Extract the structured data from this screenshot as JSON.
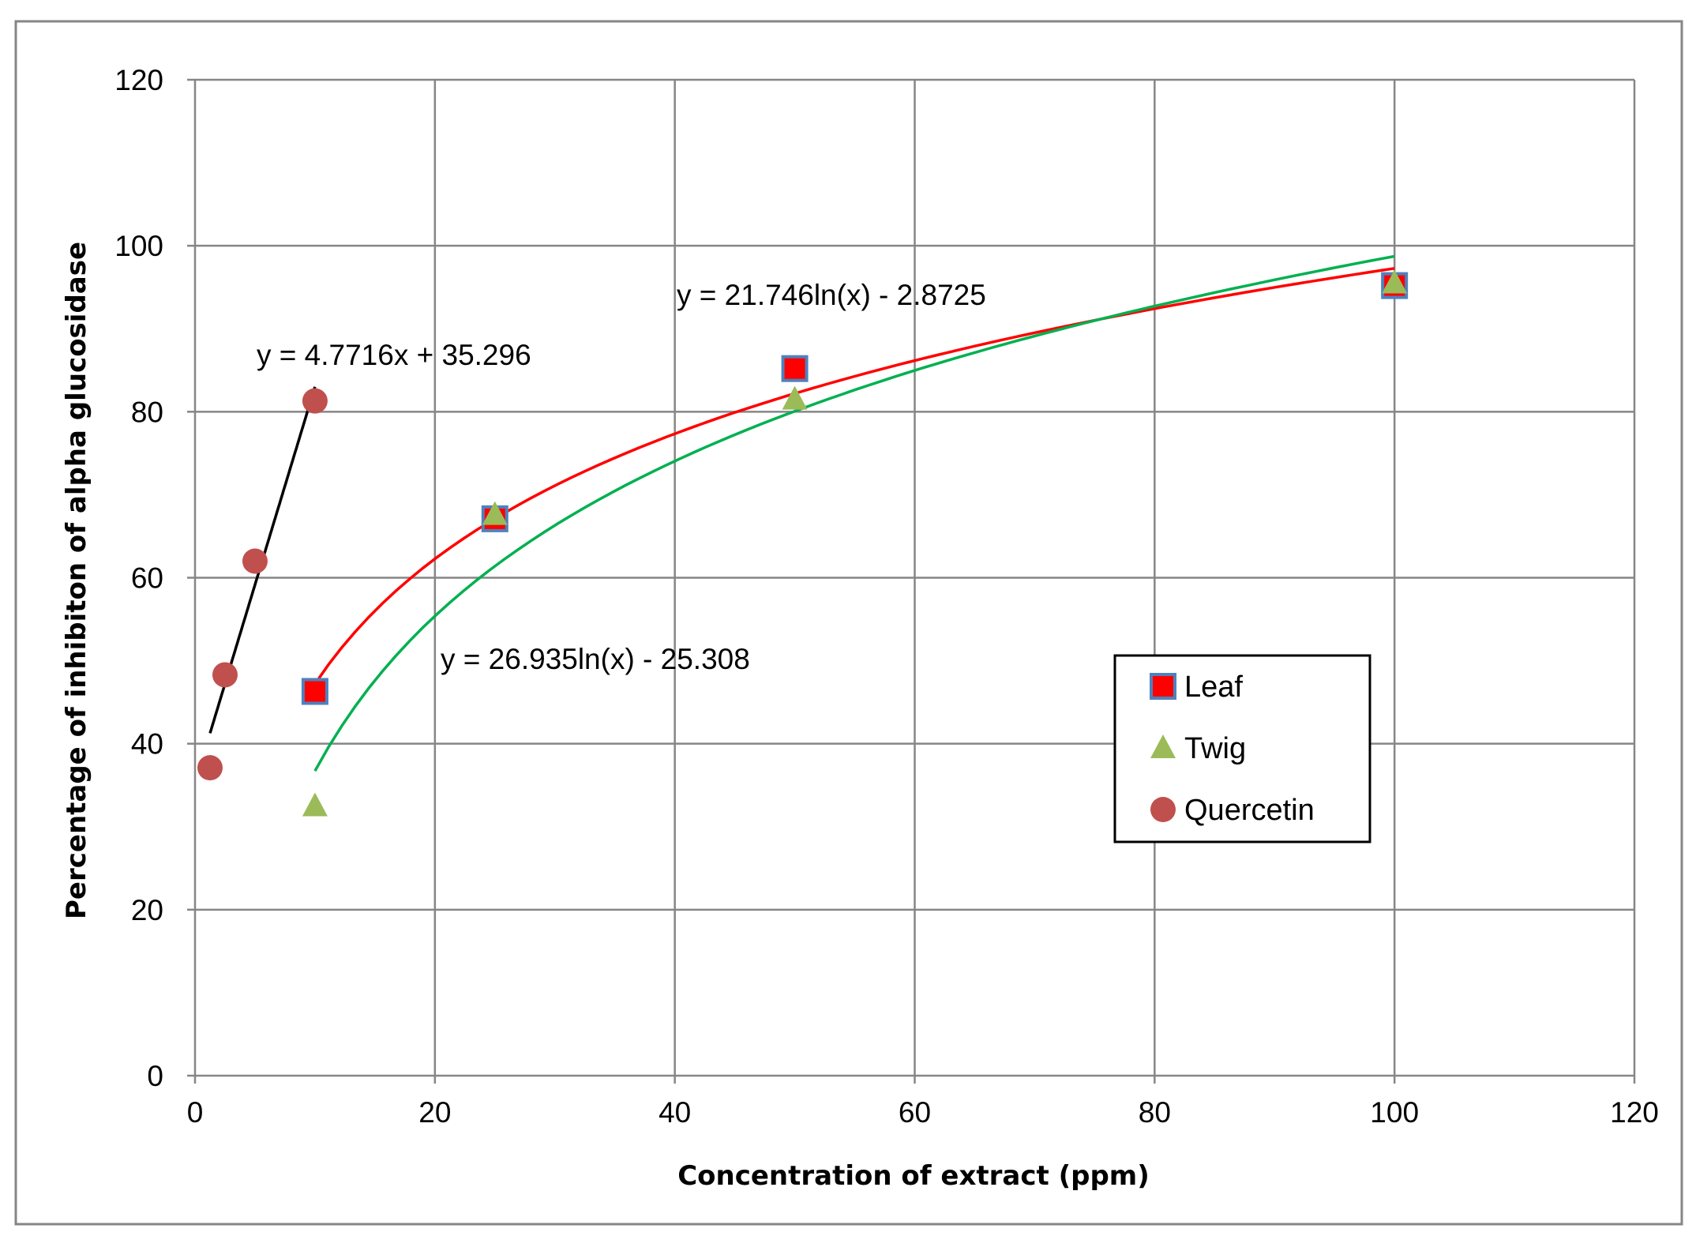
{
  "chart_data": {
    "type": "scatter",
    "title": "",
    "xlabel": "Concentration of extract (ppm)",
    "ylabel": "Percentage of inhibiton of alpha glucosidase",
    "xlim": [
      0,
      120
    ],
    "ylim": [
      0,
      120
    ],
    "xticks": [
      0,
      20,
      40,
      60,
      80,
      100,
      120
    ],
    "yticks": [
      0,
      20,
      40,
      60,
      80,
      100,
      120
    ],
    "grid": true,
    "legend_position": "right",
    "series": [
      {
        "name": "Leaf",
        "marker": "square",
        "color": "#ff0000",
        "edge_color": "#4f81bd",
        "points": [
          [
            10,
            46.3
          ],
          [
            25,
            67.1
          ],
          [
            50,
            85.2
          ],
          [
            100,
            95.2
          ]
        ],
        "trendline": {
          "type": "log",
          "a": 21.746,
          "b": -2.8725,
          "x_range": [
            10,
            100
          ],
          "color": "#ff0000",
          "equation": "y = 21.746ln(x) - 2.8725"
        }
      },
      {
        "name": "Twig",
        "marker": "triangle",
        "color": "#9bbb59",
        "points": [
          [
            10,
            32.5
          ],
          [
            25,
            67.6
          ],
          [
            50,
            81.5
          ],
          [
            100,
            95.5
          ]
        ],
        "trendline": {
          "type": "log",
          "a": 26.935,
          "b": -25.308,
          "x_range": [
            10,
            100
          ],
          "color": "#00b050",
          "equation": "y = 26.935ln(x) - 25.308"
        }
      },
      {
        "name": "Quercetin",
        "marker": "circle",
        "color": "#c0504d",
        "points": [
          [
            1.25,
            37.1
          ],
          [
            2.5,
            48.3
          ],
          [
            5,
            62.0
          ],
          [
            10,
            81.3
          ]
        ],
        "trendline": {
          "type": "linear",
          "a": 4.7716,
          "b": 35.296,
          "x_range": [
            1.25,
            10
          ],
          "color": "#000000",
          "equation": "y = 4.7716x + 35.296"
        }
      }
    ]
  }
}
